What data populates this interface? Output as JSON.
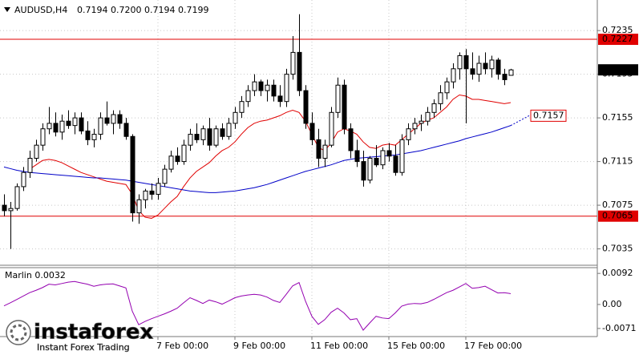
{
  "chart_data": [
    {
      "type": "candlestick",
      "title": "AUDUSD,H4",
      "subtitle": "0.7194 0.7200 0.7194 0.7199",
      "categories": [
        null,
        null,
        null,
        null,
        null,
        null,
        null,
        null,
        null,
        null,
        null,
        null,
        null,
        null,
        null,
        null,
        null,
        null,
        null,
        null,
        null,
        null,
        null,
        null,
        "7 Feb 00:00",
        null,
        null,
        null,
        null,
        null,
        null,
        null,
        null,
        null,
        null,
        null,
        "9 Feb 00:00",
        null,
        null,
        null,
        null,
        null,
        null,
        null,
        null,
        null,
        null,
        null,
        "11 Feb 00:00",
        null,
        null,
        null,
        null,
        null,
        null,
        null,
        null,
        null,
        null,
        null,
        "15 Feb 00:00",
        null,
        null,
        null,
        null,
        null,
        null,
        null,
        null,
        null,
        null,
        null,
        "17 Feb 00:00",
        null,
        null,
        null,
        null,
        null,
        null,
        null
      ],
      "open": [
        0.7075,
        0.707,
        0.7072,
        0.7092,
        0.7105,
        0.7118,
        0.713,
        0.7145,
        0.715,
        0.7142,
        0.7152,
        0.7148,
        0.7155,
        0.7143,
        0.7135,
        0.714,
        0.7155,
        0.715,
        0.7158,
        0.715,
        0.7138,
        0.7068,
        0.708,
        0.7088,
        0.7085,
        0.7095,
        0.7108,
        0.712,
        0.7115,
        0.713,
        0.714,
        0.7135,
        0.7145,
        0.713,
        0.7145,
        0.7138,
        0.715,
        0.716,
        0.717,
        0.718,
        0.7188,
        0.718,
        0.7185,
        0.7175,
        0.717,
        0.7195,
        0.7215,
        0.718,
        0.715,
        0.7135,
        0.7118,
        0.713,
        0.716,
        0.7185,
        0.7145,
        0.7125,
        0.7115,
        0.7098,
        0.7118,
        0.7112,
        0.7125,
        0.712,
        0.7105,
        0.7135,
        0.7145,
        0.715,
        0.7152,
        0.716,
        0.7168,
        0.7178,
        0.7188,
        0.72,
        0.7212,
        0.72,
        0.7195,
        0.7205,
        0.72,
        0.7208,
        0.7195,
        0.7194
      ],
      "high": [
        0.7085,
        0.7078,
        0.7095,
        0.711,
        0.7125,
        0.7135,
        0.715,
        0.7165,
        0.716,
        0.7158,
        0.7162,
        0.716,
        0.716,
        0.7152,
        0.7145,
        0.716,
        0.717,
        0.7162,
        0.7162,
        0.7155,
        0.714,
        0.7085,
        0.709,
        0.7095,
        0.71,
        0.7112,
        0.7125,
        0.7128,
        0.7135,
        0.7145,
        0.715,
        0.7148,
        0.7155,
        0.7148,
        0.715,
        0.7155,
        0.7165,
        0.7175,
        0.7185,
        0.7195,
        0.719,
        0.719,
        0.719,
        0.7185,
        0.72,
        0.723,
        0.725,
        0.7185,
        0.716,
        0.7145,
        0.7135,
        0.7165,
        0.7192,
        0.719,
        0.715,
        0.7135,
        0.7125,
        0.712,
        0.713,
        0.7128,
        0.7132,
        0.713,
        0.714,
        0.715,
        0.7155,
        0.7158,
        0.7165,
        0.7172,
        0.7185,
        0.7192,
        0.7205,
        0.7215,
        0.7218,
        0.7215,
        0.7212,
        0.7215,
        0.7212,
        0.721,
        0.72,
        0.72
      ],
      "low": [
        0.7065,
        0.7035,
        0.707,
        0.7088,
        0.71,
        0.7115,
        0.7125,
        0.714,
        0.7138,
        0.7135,
        0.7145,
        0.714,
        0.714,
        0.713,
        0.7128,
        0.7135,
        0.7148,
        0.714,
        0.7145,
        0.7135,
        0.706,
        0.7058,
        0.7072,
        0.708,
        0.708,
        0.7092,
        0.7105,
        0.7112,
        0.7112,
        0.7125,
        0.7132,
        0.713,
        0.7125,
        0.7128,
        0.7135,
        0.7135,
        0.7145,
        0.7155,
        0.7165,
        0.7175,
        0.7175,
        0.717,
        0.717,
        0.7165,
        0.7165,
        0.719,
        0.7175,
        0.7145,
        0.713,
        0.711,
        0.711,
        0.7128,
        0.7155,
        0.714,
        0.7118,
        0.711,
        0.7092,
        0.7095,
        0.711,
        0.7108,
        0.7115,
        0.7102,
        0.7102,
        0.713,
        0.714,
        0.7143,
        0.7148,
        0.7155,
        0.7162,
        0.7172,
        0.7182,
        0.719,
        0.715,
        0.719,
        0.7188,
        0.7195,
        0.7192,
        0.719,
        0.7185,
        0.7194
      ],
      "close": [
        0.707,
        0.7072,
        0.7092,
        0.7105,
        0.7118,
        0.713,
        0.7145,
        0.715,
        0.7142,
        0.7152,
        0.7148,
        0.7155,
        0.7143,
        0.7135,
        0.714,
        0.7155,
        0.715,
        0.7158,
        0.715,
        0.7138,
        0.7068,
        0.708,
        0.7088,
        0.7085,
        0.7095,
        0.7108,
        0.712,
        0.7115,
        0.713,
        0.714,
        0.7135,
        0.7145,
        0.713,
        0.7145,
        0.7138,
        0.715,
        0.716,
        0.717,
        0.718,
        0.7188,
        0.718,
        0.7185,
        0.7175,
        0.717,
        0.7195,
        0.7215,
        0.718,
        0.715,
        0.7135,
        0.7118,
        0.713,
        0.716,
        0.7185,
        0.7145,
        0.7125,
        0.7115,
        0.7098,
        0.7118,
        0.7112,
        0.7125,
        0.712,
        0.7105,
        0.7135,
        0.7145,
        0.715,
        0.7152,
        0.716,
        0.7168,
        0.7178,
        0.7188,
        0.72,
        0.7212,
        0.72,
        0.7195,
        0.7205,
        0.72,
        0.7208,
        0.7195,
        0.719,
        0.7199
      ],
      "up_color": "#ffffff",
      "down_color": "#000000",
      "outline_color": "#000000",
      "lines": [
        {
          "color": "#e00000",
          "values": [
            null,
            null,
            null,
            null,
            0.7108,
            0.7112,
            0.7116,
            0.7117,
            0.7116,
            0.7114,
            0.7111,
            0.7108,
            0.7105,
            0.7103,
            0.7101,
            0.7099,
            0.7097,
            0.7096,
            0.7095,
            0.7094,
            0.7085,
            0.707,
            0.7064,
            0.7063,
            0.7066,
            0.7072,
            0.7078,
            0.7083,
            0.7092,
            0.71,
            0.7106,
            0.711,
            0.7114,
            0.712,
            0.7125,
            0.7128,
            0.7133,
            0.714,
            0.7146,
            0.715,
            0.7152,
            0.7153,
            0.7155,
            0.7157,
            0.716,
            0.7162,
            0.716,
            0.7152,
            0.714,
            0.7128,
            0.7125,
            0.7132,
            0.7142,
            0.7145,
            0.7143,
            0.714,
            0.7133,
            0.7128,
            0.7127,
            0.713,
            0.7131,
            0.713,
            0.7135,
            0.714,
            0.7145,
            0.715,
            0.7153,
            0.7155,
            0.716,
            0.7165,
            0.7172,
            0.7176,
            0.7175,
            0.7172,
            0.7172,
            0.7171,
            0.717,
            0.7169,
            0.7168,
            0.7169
          ]
        },
        {
          "color": "#0000c8",
          "values": [
            0.711,
            0.71085,
            0.7107,
            0.7106,
            0.7105,
            0.71045,
            0.7104,
            0.71035,
            0.7103,
            0.71025,
            0.7102,
            0.71015,
            0.7101,
            0.71005,
            0.71,
            0.71,
            0.70995,
            0.7099,
            0.70985,
            0.7098,
            0.7097,
            0.7096,
            0.7095,
            0.7094,
            0.7093,
            0.7092,
            0.7091,
            0.709,
            0.7089,
            0.7088,
            0.70875,
            0.7087,
            0.70865,
            0.70865,
            0.7087,
            0.70875,
            0.7088,
            0.7089,
            0.709,
            0.7091,
            0.70925,
            0.7094,
            0.7096,
            0.7098,
            0.71,
            0.7102,
            0.7104,
            0.7106,
            0.71075,
            0.7109,
            0.71105,
            0.7112,
            0.7114,
            0.7116,
            0.7117,
            0.7118,
            0.71185,
            0.7119,
            0.71195,
            0.712,
            0.71205,
            0.7121,
            0.7122,
            0.7123,
            0.7124,
            0.7125,
            0.71265,
            0.7128,
            0.71295,
            0.7131,
            0.71325,
            0.7134,
            0.7136,
            0.71375,
            0.7139,
            0.71405,
            0.7142,
            0.7144,
            0.7146,
            0.7148
          ],
          "projection": 0.7157
        }
      ],
      "hlines": [
        {
          "value": 0.7227,
          "color": "#e00000"
        },
        {
          "value": 0.7065,
          "color": "#e00000"
        }
      ],
      "current_price": 0.7199,
      "ylim": [
        0.702,
        0.7263
      ],
      "yticks": [
        0.7235,
        0.7195,
        0.7155,
        0.7115,
        0.7075,
        0.7035
      ],
      "grid": true
    },
    {
      "type": "line",
      "title": "Marlin",
      "color": "#9400b0",
      "values": [
        -0.0004,
        0.0005,
        0.0015,
        0.0025,
        0.0035,
        0.0042,
        0.005,
        0.006,
        0.0058,
        0.0062,
        0.0066,
        0.0068,
        0.0064,
        0.006,
        0.0054,
        0.0058,
        0.006,
        0.0061,
        0.0055,
        0.0049,
        -0.002,
        -0.006,
        -0.005,
        -0.0042,
        -0.0035,
        -0.0028,
        -0.002,
        -0.0011,
        0.0005,
        0.002,
        0.0012,
        0.0003,
        0.0013,
        0.0008,
        0.0001,
        0.001,
        0.002,
        0.0025,
        0.0028,
        0.003,
        0.0028,
        0.0022,
        0.0012,
        0.0006,
        0.003,
        0.0055,
        0.0065,
        0.001,
        -0.0035,
        -0.0059,
        -0.0045,
        -0.0023,
        -0.0011,
        -0.0025,
        -0.0045,
        -0.0042,
        -0.0076,
        -0.0055,
        -0.0035,
        -0.004,
        -0.0042,
        -0.0025,
        -0.0005,
        0.0001,
        0.0003,
        0.0002,
        0.0006,
        0.0015,
        0.0025,
        0.0035,
        0.0042,
        0.0052,
        0.0062,
        0.0048,
        0.005,
        0.0054,
        0.0044,
        0.0034,
        0.0035,
        0.0032
      ],
      "ylim": [
        -0.0095,
        0.0109
      ],
      "yticks": [
        0.0092,
        {
          "value": 0,
          "label": "0.00"
        },
        -0.0071
      ]
    }
  ],
  "watermark": {
    "brand": "instaforex",
    "tagline": "Instant Forex Trading"
  }
}
